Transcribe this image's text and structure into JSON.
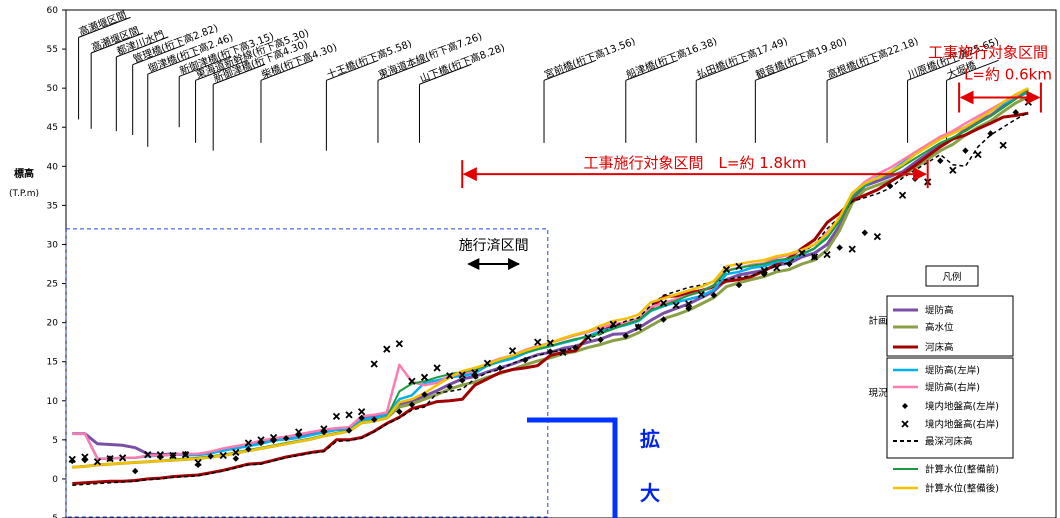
{
  "chart_data": {
    "type": "line",
    "ylabel": "標高",
    "ylabel_unit": "(T.P.m)",
    "ylim": [
      -5,
      60
    ],
    "yticks": [
      -5,
      0,
      5,
      10,
      15,
      20,
      25,
      30,
      35,
      40,
      45,
      50,
      55,
      60
    ],
    "x": [
      0,
      1,
      2,
      3,
      4,
      5,
      6,
      7,
      8,
      9,
      10,
      11,
      12,
      13,
      14,
      15,
      16,
      17,
      18,
      19,
      20,
      21,
      22,
      23,
      24,
      25,
      26,
      27,
      28,
      29,
      30,
      31,
      32,
      33,
      34,
      35,
      36,
      37,
      38,
      39,
      40,
      41,
      42,
      43,
      44,
      45,
      46,
      47,
      48,
      49,
      50,
      51,
      52,
      53,
      54,
      55,
      56,
      57,
      58,
      59,
      60,
      61,
      62,
      63,
      64,
      65,
      66,
      67,
      68,
      69,
      70,
      71,
      72,
      73,
      74,
      75,
      76
    ],
    "series": [
      {
        "name": "堤防高",
        "group": "計画",
        "color": "#7a4fa8",
        "width": 3,
        "dash": "",
        "values": [
          5.8,
          5.8,
          4.5,
          4.4,
          4.3,
          4.0,
          3.2,
          3.1,
          3.2,
          3.1,
          3.1,
          3.3,
          3.7,
          4.0,
          4.3,
          4.6,
          5.0,
          5.1,
          5.3,
          5.7,
          6.0,
          6.3,
          6.4,
          7.7,
          7.9,
          8.3,
          9.6,
          10.0,
          10.6,
          11.3,
          12.1,
          12.8,
          13.1,
          13.7,
          14.2,
          14.7,
          15.3,
          15.9,
          16.2,
          16.7,
          17.0,
          17.5,
          17.9,
          18.5,
          18.6,
          19.3,
          20.3,
          21.2,
          21.8,
          22.4,
          23.2,
          24.0,
          25.5,
          26.1,
          26.4,
          26.7,
          27.4,
          27.6,
          28.4,
          28.9,
          30.0,
          32.4,
          35.7,
          37.5,
          38.1,
          38.7,
          39.3,
          40.5,
          41.6,
          42.8,
          43.5,
          44.7,
          45.8,
          46.5,
          47.6,
          48.8,
          49.5
        ]
      },
      {
        "name": "高水位",
        "group": "計画",
        "color": "#8aa046",
        "width": 3,
        "dash": "",
        "values": [
          1.5,
          1.6,
          1.8,
          1.9,
          2.0,
          2.1,
          2.2,
          2.3,
          2.4,
          2.5,
          2.6,
          2.8,
          3.0,
          3.3,
          3.6,
          3.9,
          4.2,
          4.5,
          4.8,
          5.1,
          5.5,
          5.8,
          6.1,
          7.2,
          7.4,
          7.8,
          9.2,
          9.6,
          10.2,
          10.8,
          11.5,
          12.0,
          12.4,
          13.0,
          13.5,
          14.0,
          14.6,
          15.1,
          15.5,
          16.0,
          16.3,
          16.8,
          17.2,
          17.7,
          18.0,
          18.7,
          19.6,
          20.5,
          21.0,
          21.6,
          22.4,
          23.2,
          24.6,
          25.1,
          25.5,
          25.9,
          26.5,
          26.8,
          27.5,
          28.0,
          29.3,
          31.8,
          35.3,
          37.0,
          37.6,
          38.2,
          38.8,
          39.8,
          40.9,
          42.0,
          42.8,
          44.0,
          45.0,
          45.8,
          47.0,
          48.1,
          48.9
        ]
      },
      {
        "name": "河床高",
        "group": "計画",
        "color": "#a00000",
        "width": 3,
        "dash": "",
        "values": [
          -0.6,
          -0.5,
          -0.4,
          -0.3,
          -0.3,
          -0.2,
          0.0,
          0.1,
          0.3,
          0.4,
          0.5,
          0.8,
          1.1,
          1.5,
          1.9,
          2.0,
          2.4,
          2.8,
          3.1,
          3.4,
          3.6,
          5.0,
          5.0,
          5.3,
          6.1,
          7.1,
          7.9,
          9.0,
          9.4,
          9.9,
          10.0,
          10.2,
          12.0,
          12.8,
          13.6,
          14.0,
          14.2,
          14.5,
          15.8,
          16.2,
          16.4,
          18.2,
          18.8,
          19.6,
          19.9,
          20.3,
          21.8,
          23.3,
          23.4,
          23.8,
          24.1,
          24.6,
          25.3,
          25.5,
          25.9,
          26.6,
          27.5,
          28.3,
          29.5,
          30.6,
          32.8,
          34.0,
          35.6,
          36.3,
          37.0,
          38.0,
          39.0,
          40.1,
          41.3,
          42.5,
          43.5,
          44.0,
          44.8,
          45.5,
          46.3,
          46.5,
          46.8
        ]
      },
      {
        "name": "堤防高(左岸)",
        "group": "現況",
        "color": "#00b0f0",
        "width": 2.5,
        "dash": "",
        "values": [
          5.8,
          5.8,
          2.6,
          2.6,
          2.7,
          2.7,
          2.9,
          3.0,
          3.1,
          3.1,
          3.1,
          3.3,
          3.6,
          3.9,
          4.2,
          4.5,
          4.9,
          5.1,
          5.3,
          5.6,
          6.0,
          6.3,
          6.4,
          7.6,
          7.8,
          8.2,
          10.2,
          10.7,
          12.3,
          12.6,
          13.0,
          13.2,
          13.5,
          14.5,
          15.0,
          15.4,
          16.1,
          16.6,
          17.0,
          17.4,
          17.8,
          18.3,
          18.9,
          19.3,
          19.7,
          20.2,
          21.5,
          22.1,
          22.6,
          23.0,
          23.4,
          24.2,
          26.2,
          26.5,
          27.0,
          27.2,
          27.8,
          28.0,
          28.7,
          29.5,
          31.0,
          33.0,
          36.2,
          37.5,
          38.6,
          39.3,
          40.4,
          41.6,
          42.5,
          43.5,
          44.3,
          45.0,
          46.0,
          47.0,
          48.0,
          48.8,
          49.5
        ]
      },
      {
        "name": "堤防高(右岸)",
        "group": "現況",
        "color": "#ff7ab0",
        "width": 2.5,
        "dash": "",
        "values": [
          5.8,
          5.8,
          2.6,
          2.6,
          2.7,
          2.7,
          3.0,
          3.0,
          3.1,
          3.2,
          3.2,
          3.5,
          3.9,
          4.2,
          4.5,
          4.9,
          5.2,
          5.4,
          5.7,
          6.0,
          6.3,
          6.5,
          6.6,
          8.0,
          8.2,
          8.5,
          14.6,
          12.4,
          12.0,
          12.3,
          13.2,
          13.5,
          13.8,
          14.8,
          15.4,
          15.8,
          16.5,
          17.0,
          17.4,
          17.9,
          18.4,
          18.8,
          19.3,
          19.8,
          20.0,
          20.5,
          22.0,
          22.5,
          23.0,
          23.5,
          24.0,
          24.8,
          26.7,
          27.0,
          27.4,
          27.6,
          28.3,
          28.7,
          29.2,
          30.0,
          31.5,
          33.3,
          36.5,
          38.0,
          39.0,
          39.8,
          40.8,
          41.8,
          42.8,
          43.8,
          44.5,
          45.5,
          46.4,
          47.3,
          48.2,
          49.0,
          49.8
        ]
      },
      {
        "name": "最深河床高",
        "group": "現況",
        "color": "#000000",
        "width": 1.5,
        "dash": "4,3",
        "values": [
          -0.8,
          -0.7,
          -0.6,
          -0.5,
          -0.4,
          -0.3,
          -0.1,
          0.0,
          0.2,
          0.3,
          0.4,
          0.7,
          1.0,
          1.4,
          1.8,
          1.9,
          2.3,
          2.7,
          3.0,
          3.3,
          3.5,
          4.8,
          4.9,
          5.2,
          6.0,
          7.0,
          7.8,
          8.8,
          9.2,
          11.0,
          11.2,
          11.5,
          12.8,
          13.6,
          14.0,
          14.8,
          15.4,
          15.8,
          16.2,
          16.5,
          16.7,
          18.0,
          18.5,
          19.5,
          20.2,
          20.6,
          22.2,
          23.5,
          24.0,
          24.5,
          24.8,
          25.3,
          25.5,
          25.8,
          26.0,
          26.7,
          27.2,
          27.7,
          29.0,
          30.0,
          32.0,
          33.5,
          35.5,
          36.0,
          36.5,
          37.2,
          38.5,
          39.5,
          40.5,
          41.5,
          40.2,
          40.0,
          42.5,
          44.0,
          45.0,
          46.0,
          46.9
        ]
      },
      {
        "name": "計算水位(整備前)",
        "group": "現況",
        "color": "#1a9c3e",
        "width": 2,
        "dash": "",
        "values": [
          1.5,
          1.6,
          1.8,
          1.9,
          2.0,
          2.1,
          2.2,
          2.3,
          2.5,
          2.6,
          2.7,
          2.9,
          3.1,
          3.4,
          3.7,
          4.0,
          4.3,
          4.6,
          4.9,
          5.2,
          5.6,
          5.9,
          6.2,
          7.3,
          7.5,
          7.9,
          11.2,
          12.2,
          12.5,
          13.0,
          13.4,
          13.7,
          14.0,
          14.5,
          15.2,
          15.7,
          16.2,
          16.6,
          17.0,
          17.5,
          17.9,
          18.2,
          18.6,
          19.2,
          19.8,
          20.3,
          21.6,
          22.2,
          22.8,
          23.5,
          24.0,
          24.8,
          26.6,
          27.0,
          27.3,
          27.5,
          28.0,
          28.2,
          28.8,
          29.5,
          30.8,
          33.0,
          36.0,
          37.6,
          38.5,
          39.0,
          40.0,
          41.0,
          42.0,
          43.0,
          43.7,
          44.5,
          45.5,
          46.4,
          47.5,
          48.6,
          49.8
        ]
      },
      {
        "name": "計算水位(整備後)",
        "group": "現況",
        "color": "#f5c000",
        "width": 2.5,
        "dash": "",
        "values": [
          1.5,
          1.6,
          1.8,
          1.9,
          2.0,
          2.1,
          2.2,
          2.3,
          2.4,
          2.5,
          2.6,
          2.8,
          3.0,
          3.3,
          3.6,
          3.9,
          4.2,
          4.5,
          4.8,
          5.1,
          5.5,
          5.8,
          6.1,
          7.2,
          7.4,
          7.8,
          9.8,
          10.2,
          11.0,
          12.0,
          13.0,
          13.8,
          14.2,
          14.7,
          15.3,
          15.8,
          16.4,
          16.9,
          17.4,
          18.0,
          18.5,
          18.9,
          19.6,
          20.2,
          20.5,
          21.0,
          22.6,
          23.1,
          23.6,
          24.1,
          24.6,
          25.3,
          27.2,
          27.5,
          27.8,
          28.0,
          28.5,
          28.8,
          29.3,
          30.0,
          31.3,
          33.5,
          36.6,
          37.8,
          38.5,
          39.3,
          40.2,
          41.5,
          42.5,
          43.5,
          44.2,
          45.0,
          46.0,
          47.0,
          48.2,
          49.2,
          50.0
        ]
      }
    ],
    "points": [
      {
        "name": "境内地盤高(左岸)",
        "marker": "diamond",
        "x": [
          0,
          1,
          3,
          5,
          7,
          8,
          9,
          10,
          11,
          13,
          14,
          15,
          16,
          17,
          18,
          20,
          22,
          23,
          24,
          26,
          27,
          28,
          30,
          31,
          32,
          34,
          36,
          38,
          40,
          42,
          44,
          45,
          47,
          49,
          51,
          53,
          55,
          57,
          59,
          61,
          63,
          65,
          67,
          69,
          71,
          73,
          75
        ],
        "y": [
          2.3,
          2.4,
          2.6,
          1.0,
          2.8,
          3.0,
          3.2,
          1.8,
          2.9,
          2.6,
          3.8,
          4.6,
          4.9,
          5.2,
          5.6,
          6.0,
          6.2,
          7.8,
          7.6,
          8.6,
          9.5,
          10.8,
          11.8,
          12.6,
          13.2,
          14.2,
          15.2,
          16.3,
          16.8,
          17.8,
          18.3,
          19.5,
          20.4,
          21.8,
          23.5,
          24.8,
          26.2,
          27.5,
          28.4,
          29.6,
          31.5,
          37.5,
          38.4,
          40.7,
          42.0,
          44.2,
          46.9
        ]
      },
      {
        "name": "境内地盤高(右岸)",
        "marker": "x",
        "x": [
          0,
          1,
          2,
          3,
          4,
          6,
          7,
          8,
          9,
          10,
          12,
          13,
          14,
          15,
          16,
          18,
          20,
          21,
          22,
          23,
          24,
          25,
          26,
          27,
          28,
          29,
          30,
          31,
          32,
          33,
          35,
          37,
          38,
          39,
          41,
          42,
          43,
          45,
          47,
          48,
          49,
          50,
          52,
          53,
          55,
          56,
          58,
          59,
          60,
          62,
          64,
          66,
          68,
          70,
          72,
          74,
          76
        ],
        "y": [
          2.5,
          2.8,
          2.2,
          2.6,
          2.7,
          3.1,
          3.1,
          3.0,
          3.1,
          2.1,
          3.0,
          3.4,
          4.6,
          5.0,
          5.3,
          6.0,
          6.4,
          8.0,
          8.2,
          8.6,
          14.7,
          16.6,
          17.3,
          12.5,
          13.0,
          14.2,
          13.2,
          13.3,
          13.6,
          14.8,
          16.4,
          17.5,
          17.4,
          16.2,
          18.1,
          19.0,
          19.8,
          19.4,
          22.5,
          22.2,
          22.4,
          23.6,
          26.8,
          27.2,
          26.7,
          27.0,
          28.9,
          28.4,
          28.7,
          29.4,
          31.0,
          36.3,
          38.0,
          39.5,
          41.5,
          42.7,
          48.2
        ]
      }
    ],
    "bridges": [
      {
        "label": "高瀬堰区間",
        "stem_x": 0.5,
        "stem_top": 56.5,
        "stem_bottom": 46.0
      },
      {
        "label": "高瀬堰区間",
        "stem_x": 1.5,
        "stem_top": 54.5,
        "stem_bottom": 44.8
      },
      {
        "label": "都津川水門",
        "stem_x": 3.5,
        "stem_top": 54.0,
        "stem_bottom": 44.5
      },
      {
        "label": "管理橋(桁下高2.82)",
        "stem_x": 4.8,
        "stem_top": 53.0,
        "stem_bottom": 44.0
      },
      {
        "label": "御津橋(桁下高2.46)",
        "stem_x": 6.0,
        "stem_top": 51.8,
        "stem_bottom": 42.5
      },
      {
        "label": "新御津橋(桁下高3.15)",
        "stem_x": 8.5,
        "stem_top": 51.5,
        "stem_bottom": 45.0
      },
      {
        "label": "東海道新幹線(桁下高5.30)",
        "stem_x": 9.8,
        "stem_top": 51.0,
        "stem_bottom": 43.0
      },
      {
        "label": "新御津橋(桁下高4.30)",
        "stem_x": 11.2,
        "stem_top": 50.5,
        "stem_bottom": 42.0
      },
      {
        "label": "柴橋(桁下高4.30)",
        "stem_x": 15.0,
        "stem_top": 51.0,
        "stem_bottom": 43.0
      },
      {
        "label": "十王橋(桁下高5.58)",
        "stem_x": 20.2,
        "stem_top": 51.0,
        "stem_bottom": 42.0
      },
      {
        "label": "東海道本線(桁下高7.26)",
        "stem_x": 24.3,
        "stem_top": 51.0,
        "stem_bottom": 43.0
      },
      {
        "label": "山下橋(桁下高8.28)",
        "stem_x": 27.6,
        "stem_top": 50.5,
        "stem_bottom": 43.0
      },
      {
        "label": "宮前橋(桁下高13.56)",
        "stem_x": 37.5,
        "stem_top": 51.0,
        "stem_bottom": 43.0
      },
      {
        "label": "船津橋(桁下高16.38)",
        "stem_x": 44.0,
        "stem_top": 51.0,
        "stem_bottom": 43.0
      },
      {
        "label": "払田橋(桁下高17.49)",
        "stem_x": 49.6,
        "stem_top": 51.0,
        "stem_bottom": 43.0
      },
      {
        "label": "観音橋(桁下高19.80)",
        "stem_x": 54.3,
        "stem_top": 51.0,
        "stem_bottom": 43.0
      },
      {
        "label": "高根橋(桁下高22.18)",
        "stem_x": 60.0,
        "stem_top": 51.0,
        "stem_bottom": 43.0
      },
      {
        "label": "川原橋(桁下高25.65)",
        "stem_x": 66.4,
        "stem_top": 51.0,
        "stem_bottom": 43.0
      },
      {
        "label": "大堀橋",
        "stem_x": 69.5,
        "stem_top": 51.0,
        "stem_bottom": 43.0
      }
    ],
    "annotations": {
      "section_long_label": "工事施行対象区間　L=約 1.8km",
      "section_long_x": [
        31,
        68
      ],
      "section_long_y": 39.0,
      "section_short_title": "工事施行対象区間",
      "section_short_label": "L=約 0.6km",
      "section_short_x": [
        70.5,
        77
      ],
      "section_short_y": 48.8,
      "done_label": "施行済区間",
      "done_x": [
        31.5,
        35.5
      ],
      "done_y": 27.5,
      "zoom_chars": [
        "拡",
        "大"
      ],
      "dashed_box_x": [
        -0.5,
        37.8
      ],
      "dashed_box_y": [
        -5,
        32
      ]
    },
    "legend": {
      "title": "凡例",
      "group_plan": "計画",
      "group_current": "現況"
    }
  }
}
